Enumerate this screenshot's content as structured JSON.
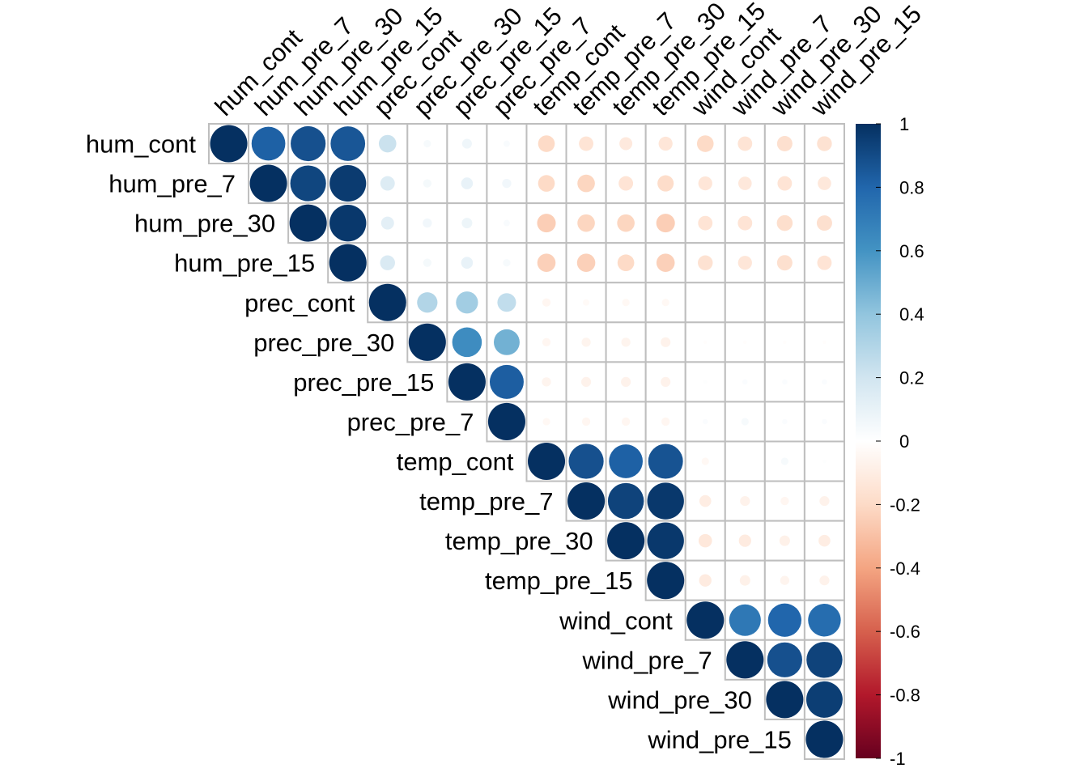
{
  "chart_data": {
    "type": "heatmap",
    "variables": [
      "hum_cont",
      "hum_pre_7",
      "hum_pre_30",
      "hum_pre_15",
      "prec_cont",
      "prec_pre_30",
      "prec_pre_15",
      "prec_pre_7",
      "temp_cont",
      "temp_pre_7",
      "temp_pre_30",
      "temp_pre_15",
      "wind_cont",
      "wind_pre_7",
      "wind_pre_30",
      "wind_pre_15"
    ],
    "matrix": [
      [
        1,
        0.82,
        0.88,
        0.86,
        0.22,
        0.04,
        0.07,
        0.03,
        -0.2,
        -0.15,
        -0.12,
        -0.14,
        -0.2,
        -0.15,
        -0.17,
        -0.16
      ],
      [
        null,
        1,
        0.92,
        0.96,
        0.15,
        0.05,
        0.1,
        0.06,
        -0.2,
        -0.22,
        -0.15,
        -0.19,
        -0.14,
        -0.13,
        -0.15,
        -0.13
      ],
      [
        null,
        null,
        1,
        0.97,
        0.12,
        0.06,
        0.08,
        0.03,
        -0.25,
        -0.22,
        -0.22,
        -0.25,
        -0.15,
        -0.15,
        -0.18,
        -0.17
      ],
      [
        null,
        null,
        null,
        1,
        0.16,
        0.05,
        0.1,
        0.04,
        -0.24,
        -0.24,
        -0.2,
        -0.24,
        -0.16,
        -0.14,
        -0.17,
        -0.15
      ],
      [
        null,
        null,
        null,
        null,
        1,
        0.3,
        0.35,
        0.25,
        -0.05,
        -0.03,
        -0.04,
        -0.04,
        0,
        0,
        0,
        0
      ],
      [
        null,
        null,
        null,
        null,
        null,
        1,
        0.63,
        0.48,
        -0.05,
        -0.06,
        -0.06,
        -0.07,
        -0.01,
        -0.01,
        -0.01,
        -0.01
      ],
      [
        null,
        null,
        null,
        null,
        null,
        null,
        1,
        0.83,
        -0.06,
        -0.07,
        -0.07,
        -0.07,
        0.01,
        0.02,
        0.02,
        0.02
      ],
      [
        null,
        null,
        null,
        null,
        null,
        null,
        null,
        1,
        -0.04,
        -0.05,
        -0.05,
        -0.05,
        0.02,
        0.04,
        0.02,
        0.02
      ],
      [
        null,
        null,
        null,
        null,
        null,
        null,
        null,
        null,
        1,
        0.88,
        0.82,
        0.87,
        -0.04,
        0,
        0.04,
        0.01
      ],
      [
        null,
        null,
        null,
        null,
        null,
        null,
        null,
        null,
        null,
        1,
        0.93,
        0.97,
        -0.1,
        -0.07,
        -0.05,
        -0.07
      ],
      [
        null,
        null,
        null,
        null,
        null,
        null,
        null,
        null,
        null,
        null,
        1,
        0.97,
        -0.13,
        -0.11,
        -0.08,
        -0.1
      ],
      [
        null,
        null,
        null,
        null,
        null,
        null,
        null,
        null,
        null,
        null,
        null,
        1,
        -0.11,
        -0.08,
        -0.06,
        -0.07
      ],
      [
        null,
        null,
        null,
        null,
        null,
        null,
        null,
        null,
        null,
        null,
        null,
        null,
        1,
        0.72,
        0.8,
        0.77
      ],
      [
        null,
        null,
        null,
        null,
        null,
        null,
        null,
        null,
        null,
        null,
        null,
        null,
        null,
        1,
        0.88,
        0.93
      ],
      [
        null,
        null,
        null,
        null,
        null,
        null,
        null,
        null,
        null,
        null,
        null,
        null,
        null,
        null,
        1,
        0.95
      ],
      [
        null,
        null,
        null,
        null,
        null,
        null,
        null,
        null,
        null,
        null,
        null,
        null,
        null,
        null,
        null,
        1
      ]
    ],
    "legend": {
      "ticks": [
        "1",
        "0.8",
        "0.6",
        "0.4",
        "0.2",
        "0",
        "-0.2",
        "-0.4",
        "-0.6",
        "-0.8",
        "-1"
      ],
      "range": [
        -1,
        1
      ],
      "placement": "right"
    },
    "colors": {
      "stops": [
        "#67001F",
        "#B2182B",
        "#D6604D",
        "#F4A582",
        "#FDDBC7",
        "#FFFFFF",
        "#D1E5F0",
        "#92C5DE",
        "#4393C3",
        "#2166AC",
        "#053061"
      ],
      "grid": "#BEBEBE"
    }
  }
}
